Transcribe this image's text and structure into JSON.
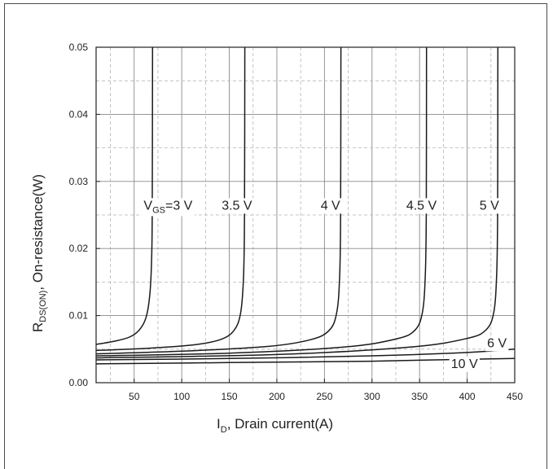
{
  "chart_data": {
    "type": "line",
    "xlabel": {
      "main": "I",
      "sub": "D",
      "rest": ", Drain current(A)"
    },
    "ylabel": {
      "main": "R",
      "sub": "DS(ON)",
      "rest": ", On-resistance(W)"
    },
    "xlim": [
      10,
      450
    ],
    "ylim": [
      0,
      0.05
    ],
    "x_ticks": [
      50,
      100,
      150,
      200,
      250,
      300,
      350,
      400,
      450
    ],
    "y_ticks": [
      "0.00",
      "0.01",
      "0.02",
      "0.03",
      "0.04",
      "0.05"
    ],
    "grid": true,
    "series": [
      {
        "name": "VGS=3 V",
        "label": {
          "prefix": "V",
          "sub": "GS",
          "rest": "=3 V"
        },
        "points": [
          [
            10,
            0.0057
          ],
          [
            30,
            0.0062
          ],
          [
            45,
            0.0068
          ],
          [
            55,
            0.0078
          ],
          [
            62,
            0.0095
          ],
          [
            66,
            0.0125
          ],
          [
            68,
            0.017
          ],
          [
            69,
            0.025
          ],
          [
            69.3,
            0.05
          ]
        ]
      },
      {
        "name": "3.5 V",
        "label": {
          "prefix": "",
          "sub": "",
          "rest": "3.5 V"
        },
        "points": [
          [
            10,
            0.0048
          ],
          [
            60,
            0.0051
          ],
          [
            110,
            0.0056
          ],
          [
            140,
            0.0064
          ],
          [
            155,
            0.0078
          ],
          [
            162,
            0.0105
          ],
          [
            165,
            0.016
          ],
          [
            166,
            0.025
          ],
          [
            166.3,
            0.05
          ]
        ]
      },
      {
        "name": "4 V",
        "label": {
          "prefix": "",
          "sub": "",
          "rest": "4 V"
        },
        "points": [
          [
            10,
            0.0043
          ],
          [
            100,
            0.0047
          ],
          [
            190,
            0.0054
          ],
          [
            235,
            0.0064
          ],
          [
            255,
            0.0078
          ],
          [
            263,
            0.0105
          ],
          [
            266,
            0.016
          ],
          [
            267,
            0.025
          ],
          [
            267.3,
            0.05
          ]
        ]
      },
      {
        "name": "4.5 V",
        "label": {
          "prefix": "",
          "sub": "",
          "rest": "4.5 V"
        },
        "points": [
          [
            10,
            0.004
          ],
          [
            150,
            0.0044
          ],
          [
            270,
            0.0053
          ],
          [
            325,
            0.0065
          ],
          [
            345,
            0.0078
          ],
          [
            353,
            0.0105
          ],
          [
            356,
            0.016
          ],
          [
            357,
            0.025
          ],
          [
            357.3,
            0.05
          ]
        ]
      },
      {
        "name": "5 V",
        "label": {
          "prefix": "",
          "sub": "",
          "rest": "5 V"
        },
        "points": [
          [
            10,
            0.0037
          ],
          [
            200,
            0.0042
          ],
          [
            340,
            0.0053
          ],
          [
            400,
            0.0066
          ],
          [
            420,
            0.0079
          ],
          [
            428,
            0.0105
          ],
          [
            431,
            0.016
          ],
          [
            432,
            0.025
          ],
          [
            432.3,
            0.05
          ]
        ]
      },
      {
        "name": "6 V",
        "label": {
          "prefix": "",
          "sub": "",
          "rest": "6 V"
        },
        "points": [
          [
            10,
            0.0034
          ],
          [
            150,
            0.0036
          ],
          [
            300,
            0.004
          ],
          [
            400,
            0.0045
          ],
          [
            450,
            0.005
          ]
        ]
      },
      {
        "name": "10 V",
        "label": {
          "prefix": "",
          "sub": "",
          "rest": "10 V"
        },
        "points": [
          [
            10,
            0.0028
          ],
          [
            150,
            0.003
          ],
          [
            300,
            0.0032
          ],
          [
            400,
            0.0035
          ],
          [
            450,
            0.0036
          ]
        ]
      }
    ]
  }
}
